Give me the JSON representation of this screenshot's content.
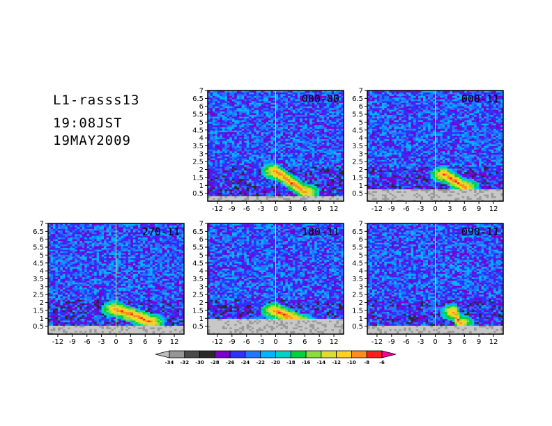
{
  "header": {
    "station": "L1-rasss13",
    "time": "19:08JST",
    "date": "19MAY2009"
  },
  "chart_data": [
    {
      "type": "heatmap",
      "panel_label": "000-00",
      "x_ticks": [
        "-12",
        "-9",
        "-6",
        "-3",
        "0",
        "3",
        "6",
        "9",
        "12"
      ],
      "y_ticks": [
        "0.5",
        "1",
        "1.5",
        "2",
        "2.5",
        "3",
        "3.5",
        "4",
        "4.5",
        "5",
        "5.5",
        "6",
        "6.5",
        "7"
      ],
      "xlim": [
        -14,
        14
      ],
      "ylim": [
        0,
        7
      ],
      "ground_clutter_top": 0.3,
      "echo": {
        "x0": 0,
        "y0": 1.9,
        "x1": 6,
        "y1": 0.6,
        "peak": -8
      }
    },
    {
      "type": "heatmap",
      "panel_label": "000-11",
      "x_ticks": [
        "-12",
        "-9",
        "-6",
        "-3",
        "0",
        "3",
        "6",
        "9",
        "12"
      ],
      "y_ticks": [
        "0.5",
        "1",
        "1.5",
        "2",
        "2.5",
        "3",
        "3.5",
        "4",
        "4.5",
        "5",
        "5.5",
        "6",
        "6.5",
        "7"
      ],
      "xlim": [
        -14,
        14
      ],
      "ylim": [
        0,
        7
      ],
      "ground_clutter_top": 0.75,
      "echo": {
        "x0": 2,
        "y0": 1.7,
        "x1": 6,
        "y1": 0.9,
        "peak": -8
      }
    },
    {
      "type": "heatmap",
      "panel_label": "270-11",
      "x_ticks": [
        "-12",
        "-9",
        "-6",
        "-3",
        "0",
        "3",
        "6",
        "9",
        "12"
      ],
      "y_ticks": [
        "0.5",
        "1",
        "1.5",
        "2",
        "2.5",
        "3",
        "3.5",
        "4",
        "4.5",
        "5",
        "5.5",
        "6",
        "6.5",
        "7"
      ],
      "xlim": [
        -14,
        14
      ],
      "ylim": [
        0,
        7
      ],
      "ground_clutter_top": 0.5,
      "echo": {
        "x0": 0,
        "y0": 1.6,
        "x1": 7,
        "y1": 0.8,
        "peak": -8
      }
    },
    {
      "type": "heatmap",
      "panel_label": "180-11",
      "x_ticks": [
        "-12",
        "-9",
        "-6",
        "-3",
        "0",
        "3",
        "6",
        "9",
        "12"
      ],
      "y_ticks": [
        "0.5",
        "1",
        "1.5",
        "2",
        "2.5",
        "3",
        "3.5",
        "4",
        "4.5",
        "5",
        "5.5",
        "6",
        "6.5",
        "7"
      ],
      "xlim": [
        -14,
        14
      ],
      "ylim": [
        0,
        7
      ],
      "ground_clutter_top": 0.95,
      "echo": {
        "x0": 0,
        "y0": 1.5,
        "x1": 5,
        "y1": 0.8,
        "peak": -8
      }
    },
    {
      "type": "heatmap",
      "panel_label": "090-11",
      "x_ticks": [
        "-12",
        "-9",
        "-6",
        "-3",
        "0",
        "3",
        "6",
        "9",
        "12"
      ],
      "y_ticks": [
        "0.5",
        "1",
        "1.5",
        "2",
        "2.5",
        "3",
        "3.5",
        "4",
        "4.5",
        "5",
        "5.5",
        "6",
        "6.5",
        "7"
      ],
      "xlim": [
        -14,
        14
      ],
      "ylim": [
        0,
        7
      ],
      "ground_clutter_top": 0.55,
      "echo": {
        "x0": 4,
        "y0": 1.4,
        "x1": 5,
        "y1": 0.7,
        "peak": -8
      }
    }
  ],
  "colorbar": {
    "ticks": [
      "-34",
      "-32",
      "-30",
      "-28",
      "-26",
      "-24",
      "-22",
      "-20",
      "-18",
      "-16",
      "-14",
      "-12",
      "-10",
      "-8",
      "-6"
    ],
    "colors": [
      "#bdbdbd",
      "#969696",
      "#4a4a4a",
      "#2a2a2a",
      "#7a00d0",
      "#3030ff",
      "#1e78ff",
      "#00b4ff",
      "#00d2c8",
      "#00d23c",
      "#8cdc3c",
      "#dcdc32",
      "#ffd21e",
      "#ff8c1e",
      "#ff1e1e",
      "#ff0096"
    ]
  }
}
